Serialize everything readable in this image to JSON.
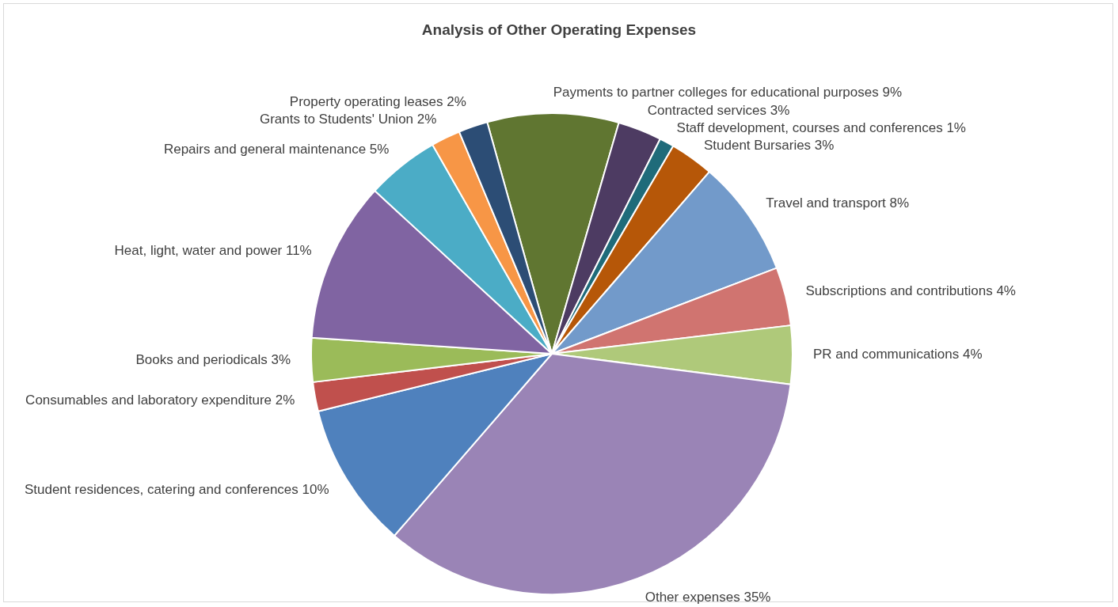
{
  "chart_data": {
    "type": "pie",
    "title": "Analysis of Other Operating Expenses",
    "categories": [
      "Payments to partner colleges for educational purposes",
      "Contracted services",
      "Staff development, courses and conferences",
      "Student Bursaries",
      "Travel and transport",
      "Subscriptions and contributions",
      "PR and communications",
      "Other expenses",
      "Student residences, catering and conferences",
      "Consumables and laboratory expenditure",
      "Books and periodicals",
      "Heat, light, water and power",
      "Repairs and general maintenance",
      "Grants to Students' Union",
      "Property operating leases"
    ],
    "values": [
      9,
      3,
      1,
      3,
      8,
      4,
      4,
      35,
      10,
      2,
      3,
      11,
      5,
      2,
      2
    ],
    "value_labels": [
      "9%",
      "3%",
      "1%",
      "3%",
      "8%",
      "4%",
      "4%",
      "35%",
      "10%",
      "2%",
      "3%",
      "11%",
      "5%",
      "2%",
      "2%"
    ],
    "colors": [
      "#607631",
      "#4d3b62",
      "#1f6b7a",
      "#b65708",
      "#729aca",
      "#d07470",
      "#afc97a",
      "#9a84b6",
      "#4f81bd",
      "#c0504d",
      "#9bbb59",
      "#8064a2",
      "#4bacc6",
      "#f79646",
      "#2c4d75"
    ],
    "legend": false
  }
}
